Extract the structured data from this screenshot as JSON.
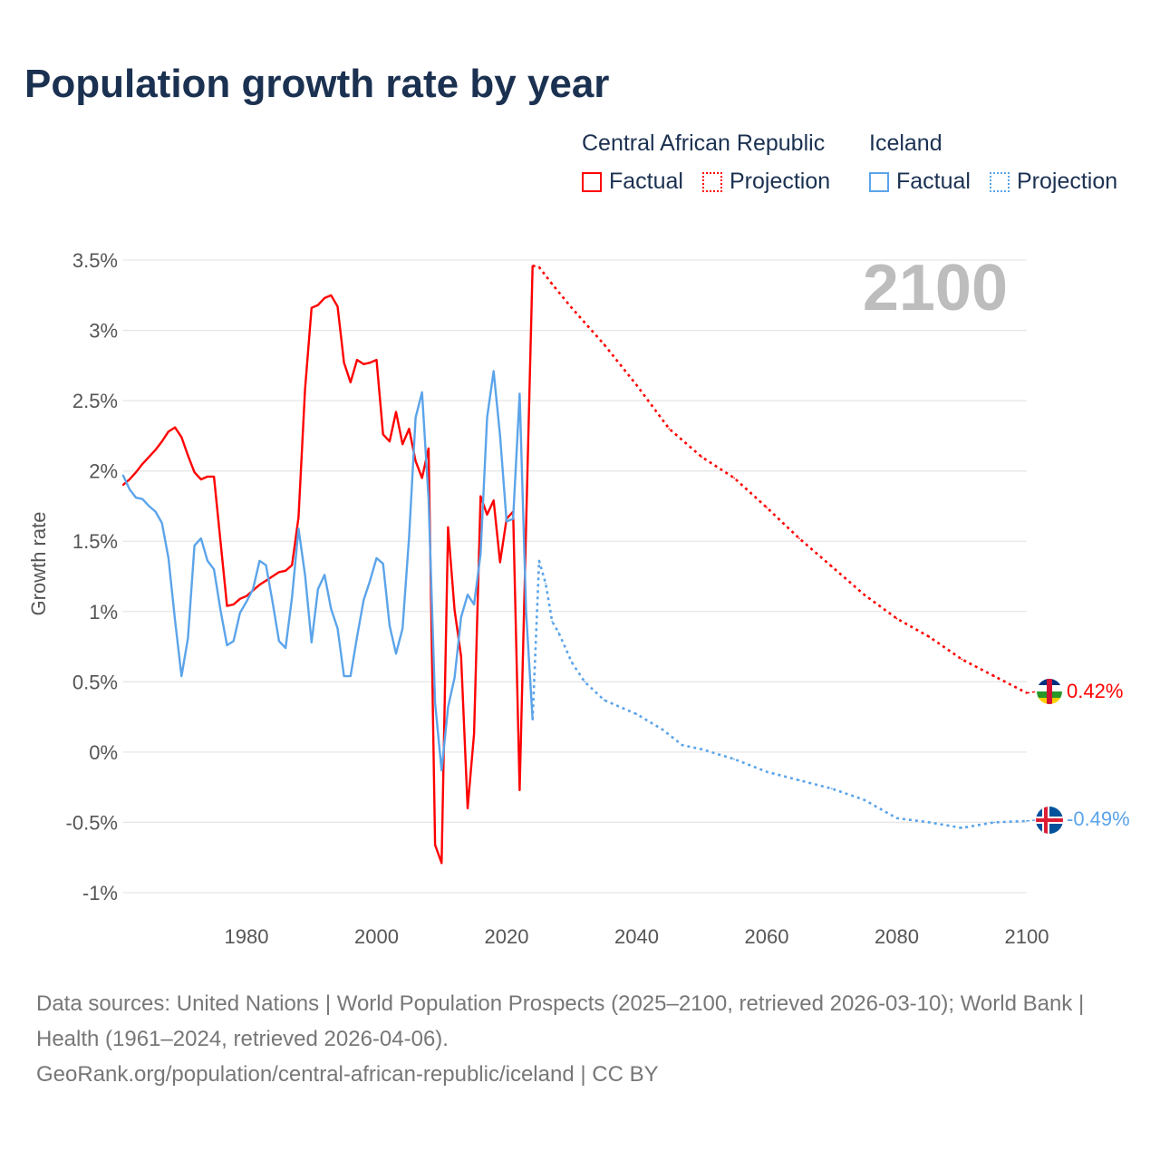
{
  "title": "Population growth rate by year",
  "legend": {
    "groups": [
      {
        "country": "Central African Republic",
        "factual": "Factual",
        "projection": "Projection",
        "color": "#ff0000"
      },
      {
        "country": "Iceland",
        "factual": "Factual",
        "projection": "Projection",
        "color": "#5ba4ea"
      }
    ]
  },
  "year_badge": "2100",
  "end_labels": {
    "car": "0.42%",
    "iceland": "-0.49%"
  },
  "footer": {
    "sources": "Data sources: United Nations | World Population Prospects (2025–2100, retrieved 2026-03-10); World Bank | Health (1961–2024, retrieved 2026-04-06).",
    "credit": "GeoRank.org/population/central-african-republic/iceland | CC BY"
  },
  "chart_data": {
    "type": "line",
    "title": "Population growth rate by year",
    "xlabel": "",
    "ylabel": "Growth rate",
    "xlim": [
      1961,
      2100
    ],
    "ylim": [
      -1,
      3.5
    ],
    "x_ticks": [
      "1980",
      "2000",
      "2020",
      "2040",
      "2060",
      "2080",
      "2100"
    ],
    "x_tick_values": [
      1980,
      2000,
      2020,
      2040,
      2060,
      2080,
      2100
    ],
    "y_ticks": [
      "3.5%",
      "3%",
      "2.5%",
      "2%",
      "1.5%",
      "1%",
      "0.5%",
      "0%",
      "-0.5%",
      "-1%"
    ],
    "y_tick_values": [
      3.5,
      3,
      2.5,
      2,
      1.5,
      1,
      0.5,
      0,
      -0.5,
      -1
    ],
    "grid": true,
    "legend_position": "top-right",
    "series": [
      {
        "name": "Central African Republic Factual",
        "color": "#ff0000",
        "style": "solid",
        "x": [
          1961,
          1962,
          1963,
          1964,
          1965,
          1966,
          1967,
          1968,
          1969,
          1970,
          1971,
          1972,
          1973,
          1974,
          1975,
          1976,
          1977,
          1978,
          1979,
          1980,
          1981,
          1982,
          1983,
          1984,
          1985,
          1986,
          1987,
          1988,
          1989,
          1990,
          1991,
          1992,
          1993,
          1994,
          1995,
          1996,
          1997,
          1998,
          1999,
          2000,
          2001,
          2002,
          2003,
          2004,
          2005,
          2006,
          2007,
          2008,
          2009,
          2010,
          2011,
          2012,
          2013,
          2014,
          2015,
          2016,
          2017,
          2018,
          2019,
          2020,
          2021,
          2022,
          2023,
          2024
        ],
        "y": [
          1.9,
          1.94,
          1.99,
          2.05,
          2.1,
          2.15,
          2.21,
          2.28,
          2.31,
          2.24,
          2.11,
          1.99,
          1.94,
          1.96,
          1.96,
          1.5,
          1.04,
          1.05,
          1.09,
          1.11,
          1.15,
          1.19,
          1.22,
          1.25,
          1.28,
          1.29,
          1.33,
          1.67,
          2.58,
          3.16,
          3.18,
          3.23,
          3.25,
          3.17,
          2.77,
          2.63,
          2.79,
          2.76,
          2.77,
          2.79,
          2.26,
          2.21,
          2.42,
          2.19,
          2.3,
          2.07,
          1.95,
          2.16,
          -0.66,
          -0.79,
          1.6,
          1.01,
          0.68,
          -0.4,
          0.13,
          1.82,
          1.69,
          1.79,
          1.35,
          1.66,
          1.71,
          -0.27,
          1.6,
          3.46
        ]
      },
      {
        "name": "Central African Republic Projection",
        "color": "#ff0000",
        "style": "dotted",
        "x": [
          2024,
          2025,
          2027,
          2030,
          2035,
          2040,
          2045,
          2050,
          2055,
          2060,
          2065,
          2070,
          2075,
          2080,
          2085,
          2090,
          2095,
          2100
        ],
        "y": [
          3.46,
          3.45,
          3.33,
          3.16,
          2.9,
          2.61,
          2.3,
          2.1,
          1.95,
          1.74,
          1.52,
          1.32,
          1.12,
          0.95,
          0.82,
          0.66,
          0.54,
          0.42
        ]
      },
      {
        "name": "Iceland Factual",
        "color": "#5ba4ea",
        "style": "solid",
        "x": [
          1961,
          1962,
          1963,
          1964,
          1965,
          1966,
          1967,
          1968,
          1969,
          1970,
          1971,
          1972,
          1973,
          1974,
          1975,
          1976,
          1977,
          1978,
          1979,
          1980,
          1981,
          1982,
          1983,
          1984,
          1985,
          1986,
          1987,
          1988,
          1989,
          1990,
          1991,
          1992,
          1993,
          1994,
          1995,
          1996,
          1997,
          1998,
          1999,
          2000,
          2001,
          2002,
          2003,
          2004,
          2005,
          2006,
          2007,
          2008,
          2009,
          2010,
          2011,
          2012,
          2013,
          2014,
          2015,
          2016,
          2017,
          2018,
          2019,
          2020,
          2021,
          2022,
          2023,
          2024
        ],
        "y": [
          1.97,
          1.87,
          1.81,
          1.8,
          1.75,
          1.71,
          1.63,
          1.38,
          0.94,
          0.54,
          0.81,
          1.47,
          1.52,
          1.36,
          1.3,
          1.01,
          0.76,
          0.79,
          0.99,
          1.07,
          1.16,
          1.36,
          1.33,
          1.07,
          0.79,
          0.74,
          1.1,
          1.59,
          1.26,
          0.78,
          1.16,
          1.26,
          1.02,
          0.88,
          0.54,
          0.54,
          0.82,
          1.08,
          1.22,
          1.38,
          1.34,
          0.9,
          0.7,
          0.88,
          1.53,
          2.38,
          2.56,
          1.8,
          0.35,
          -0.13,
          0.32,
          0.53,
          0.96,
          1.12,
          1.05,
          1.41,
          2.38,
          2.71,
          2.25,
          1.64,
          1.66,
          2.55,
          1.0,
          0.23
        ]
      },
      {
        "name": "Iceland Projection",
        "color": "#5ba4ea",
        "style": "dotted",
        "x": [
          2024,
          2025,
          2026,
          2027,
          2028,
          2030,
          2032,
          2035,
          2040,
          2044,
          2047,
          2050,
          2055,
          2060,
          2065,
          2070,
          2075,
          2080,
          2085,
          2090,
          2095,
          2100
        ],
        "y": [
          0.23,
          1.36,
          1.2,
          0.93,
          0.85,
          0.64,
          0.5,
          0.37,
          0.27,
          0.16,
          0.05,
          0.02,
          -0.05,
          -0.14,
          -0.2,
          -0.26,
          -0.34,
          -0.47,
          -0.5,
          -0.54,
          -0.5,
          -0.49
        ]
      }
    ]
  }
}
